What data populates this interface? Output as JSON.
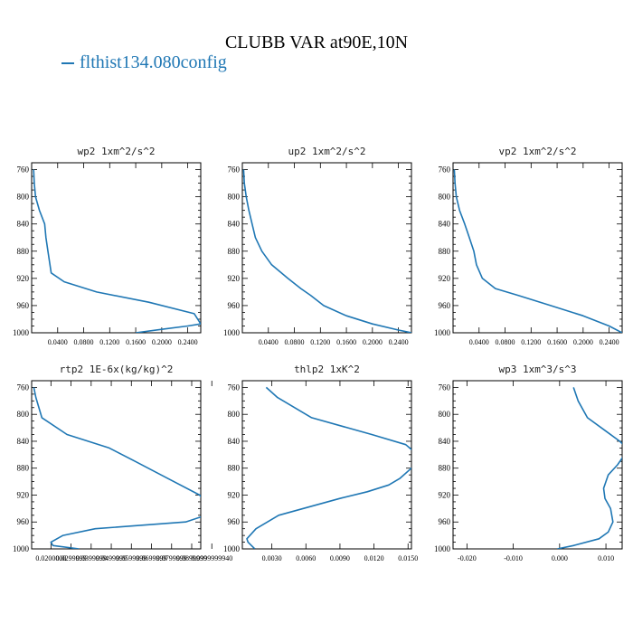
{
  "title": "CLUBB VAR at90E,10N",
  "legend": {
    "entries": [
      {
        "label": "flthist134.080config",
        "color": "#1f77b4"
      }
    ]
  },
  "chart_data": [
    {
      "type": "line",
      "title": "wp2  1xm^2/s^2",
      "ylim": [
        1000,
        750
      ],
      "xlim": [
        0.0,
        0.26
      ],
      "yticks": [
        "760",
        "800",
        "840",
        "880",
        "920",
        "960",
        "1000"
      ],
      "xticks": [
        "0.0400",
        "0.0800",
        "0.1200",
        "0.1600",
        "0.2000",
        "0.2400"
      ],
      "xtick_values": [
        0.04,
        0.08,
        0.12,
        0.16,
        0.2,
        0.24
      ],
      "series": [
        {
          "color": "#1f77b4",
          "x": [
            0.003,
            0.004,
            0.006,
            0.012,
            0.02,
            0.022,
            0.025,
            0.03,
            0.05,
            0.1,
            0.18,
            0.25,
            0.26,
            0.24,
            0.2,
            0.16
          ],
          "y": [
            760,
            780,
            800,
            820,
            840,
            860,
            880,
            912,
            925,
            940,
            955,
            972,
            987,
            990,
            995,
            1000
          ]
        }
      ]
    },
    {
      "type": "line",
      "title": "up2  1xm^2/s^2",
      "ylim": [
        1000,
        750
      ],
      "xlim": [
        0.0,
        0.26
      ],
      "yticks": [
        "760",
        "800",
        "840",
        "880",
        "920",
        "960",
        "1000"
      ],
      "xticks": [
        "0.0400",
        "0.0800",
        "0.1200",
        "0.1600",
        "0.2000",
        "0.2400"
      ],
      "xtick_values": [
        0.04,
        0.08,
        0.12,
        0.16,
        0.2,
        0.24
      ],
      "series": [
        {
          "color": "#1f77b4",
          "x": [
            0.002,
            0.003,
            0.006,
            0.01,
            0.015,
            0.02,
            0.03,
            0.045,
            0.07,
            0.09,
            0.105,
            0.125,
            0.16,
            0.2,
            0.24,
            0.26
          ],
          "y": [
            760,
            780,
            800,
            820,
            840,
            860,
            880,
            900,
            920,
            935,
            945,
            960,
            975,
            987,
            996,
            1000
          ]
        }
      ]
    },
    {
      "type": "line",
      "title": "vp2  1xm^2/s^2",
      "ylim": [
        1000,
        750
      ],
      "xlim": [
        0.0,
        0.26
      ],
      "yticks": [
        "760",
        "800",
        "840",
        "880",
        "920",
        "960",
        "1000"
      ],
      "xticks": [
        "0.0400",
        "0.0800",
        "0.1200",
        "0.1600",
        "0.2000",
        "0.2400"
      ],
      "xtick_values": [
        0.04,
        0.08,
        0.12,
        0.16,
        0.2,
        0.24
      ],
      "series": [
        {
          "color": "#1f77b4",
          "x": [
            0.002,
            0.003,
            0.005,
            0.01,
            0.018,
            0.025,
            0.032,
            0.036,
            0.045,
            0.065,
            0.1,
            0.15,
            0.2,
            0.24,
            0.26
          ],
          "y": [
            760,
            780,
            800,
            820,
            840,
            860,
            880,
            900,
            920,
            935,
            945,
            960,
            975,
            990,
            1000
          ]
        }
      ]
    },
    {
      "type": "line",
      "title": "rtp2  1E-6x(kg/kg)^2",
      "ylim": [
        1000,
        750
      ],
      "xlim": [
        0.0104,
        0.0945
      ],
      "yticks": [
        "760",
        "800",
        "840",
        "880",
        "920",
        "960",
        "1000"
      ],
      "xticks": [
        "0.0200000",
        "0.0299999",
        "0.0399999",
        "0.0499999",
        "0.0599999",
        "0.0699999",
        "0.0799999",
        "0.0899999",
        "0.0999999940"
      ],
      "xtick_values": [
        0.02,
        0.03,
        0.04,
        0.05,
        0.06,
        0.07,
        0.08,
        0.09,
        0.1
      ],
      "series": [
        {
          "color": "#1f77b4",
          "x": [
            0.0115,
            0.0125,
            0.0155,
            0.028,
            0.049,
            0.062,
            0.078,
            0.094,
            0.099,
            0.095,
            0.087,
            0.042,
            0.026,
            0.02,
            0.021,
            0.034
          ],
          "y": [
            760,
            775,
            805,
            830,
            850,
            870,
            895,
            920,
            940,
            952,
            960,
            970,
            980,
            990,
            995,
            1000
          ]
        }
      ]
    },
    {
      "type": "line",
      "title": "thlp2  1xK^2",
      "ylim": [
        1000,
        750
      ],
      "xlim": [
        0.0004,
        0.0153
      ],
      "yticks": [
        "760",
        "800",
        "840",
        "880",
        "920",
        "960",
        "1000"
      ],
      "xticks": [
        "0.0030",
        "0.0060",
        "0.0090",
        "0.0120",
        "0.0150"
      ],
      "xtick_values": [
        0.003,
        0.006,
        0.009,
        0.012,
        0.015
      ],
      "series": [
        {
          "color": "#1f77b4",
          "x": [
            0.0025,
            0.0035,
            0.0065,
            0.0118,
            0.0148,
            0.0162,
            0.0153,
            0.0143,
            0.0133,
            0.0114,
            0.009,
            0.0036,
            0.0016,
            0.0008,
            0.0009,
            0.0015
          ],
          "y": [
            760,
            775,
            805,
            830,
            845,
            865,
            880,
            895,
            905,
            915,
            925,
            950,
            970,
            985,
            990,
            1000
          ]
        }
      ]
    },
    {
      "type": "line",
      "title": "wp3  1xm^3/s^3",
      "ylim": [
        1000,
        750
      ],
      "xlim": [
        -0.023,
        0.0135
      ],
      "yticks": [
        "760",
        "800",
        "840",
        "880",
        "920",
        "960",
        "1000"
      ],
      "xticks": [
        "-0.020",
        "-0.010",
        "0.000",
        "0.010"
      ],
      "xtick_values": [
        -0.02,
        -0.01,
        0.0,
        0.01
      ],
      "series": [
        {
          "color": "#1f77b4",
          "x": [
            0.003,
            0.004,
            0.006,
            0.01,
            0.013,
            0.0145,
            0.014,
            0.0125,
            0.0105,
            0.0095,
            0.0098,
            0.011,
            0.0115,
            0.0105,
            0.0085,
            0.003,
            -0.0005
          ],
          "y": [
            760,
            780,
            805,
            825,
            840,
            850,
            860,
            875,
            890,
            910,
            925,
            940,
            960,
            975,
            985,
            995,
            1000
          ]
        }
      ]
    }
  ]
}
